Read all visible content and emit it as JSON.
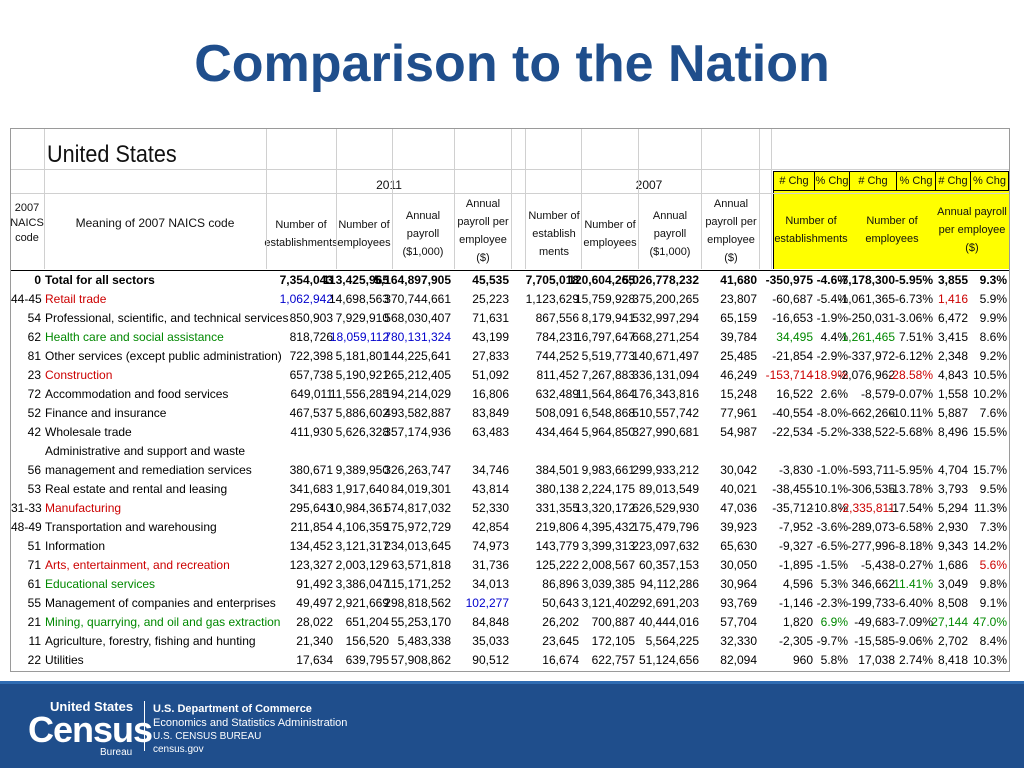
{
  "slide": {
    "title": "Comparison to the Nation"
  },
  "sheet": {
    "region": "United States",
    "col_code_header": "2007 NAICS code",
    "col_meaning_header": "Meaning of 2007 NAICS code",
    "year_a": "2011",
    "year_b": "2007",
    "sub_headers": [
      "Number of establishments",
      "Number of employees",
      "Annual payroll ($1,000)",
      "Annual payroll per employee ($)"
    ],
    "sub_headers_2007": [
      "Number of establish ments",
      "Number of employees",
      "Annual payroll ($1,000)",
      "Annual payroll per employee ($)"
    ],
    "chg_labels": [
      "# Chg",
      "% Chg",
      "# Chg",
      "% Chg",
      "# Chg",
      "% Chg"
    ],
    "chg_groups": [
      "Number of establishments",
      "Number of employees",
      "Annual payroll per employee ($)"
    ],
    "rows": [
      {
        "code": "0",
        "name": "Total for all sectors",
        "e11": "7,354,043",
        "p11": "113,425,965",
        "pay11": "5,164,897,905",
        "ppe11": "45,535",
        "e07": "7,705,018",
        "p07": "120,604,265",
        "pay07": "5,026,778,232",
        "ppe07": "41,680",
        "ec": "-350,975",
        "ep": "-4.6%",
        "pc": "-7,178,300",
        "pp": "-5.95%",
        "wc": "3,855",
        "wp": "9.3%",
        "bold": true
      },
      {
        "code": "44-45",
        "name": "Retail trade",
        "e11": "1,062,942",
        "p11": "14,698,563",
        "pay11": "370,744,661",
        "ppe11": "25,223",
        "e07": "1,123,629",
        "p07": "15,759,928",
        "pay07": "375,200,265",
        "ppe07": "23,807",
        "ec": "-60,687",
        "ep": "-5.4%",
        "pc": "-1,061,365",
        "pp": "-6.73%",
        "wc": "1,416",
        "wp": "5.9%",
        "namecolor": "#cc0000",
        "e11color": "#0000cc",
        "wccolor": "#cc0000"
      },
      {
        "code": "54",
        "name": "Professional, scientific, and technical services",
        "e11": "850,903",
        "p11": "7,929,910",
        "pay11": "568,030,407",
        "ppe11": "71,631",
        "e07": "867,556",
        "p07": "8,179,941",
        "pay07": "532,997,294",
        "ppe07": "65,159",
        "ec": "-16,653",
        "ep": "-1.9%",
        "pc": "-250,031",
        "pp": "-3.06%",
        "wc": "6,472",
        "wp": "9.9%"
      },
      {
        "code": "62",
        "name": "Health care and social assistance",
        "e11": "818,726",
        "p11": "18,059,112",
        "pay11": "780,131,324",
        "ppe11": "43,199",
        "e07": "784,231",
        "p07": "16,797,647",
        "pay07": "668,271,254",
        "ppe07": "39,784",
        "ec": "34,495",
        "ep": "4.4%",
        "pc": "1,261,465",
        "pp": "7.51%",
        "wc": "3,415",
        "wp": "8.6%",
        "namecolor": "#008800",
        "p11color": "#0000cc",
        "pay11color": "#0000cc",
        "eccolor": "#008800",
        "pccolor": "#008800"
      },
      {
        "code": "81",
        "name": "Other services (except public administration)",
        "e11": "722,398",
        "p11": "5,181,801",
        "pay11": "144,225,641",
        "ppe11": "27,833",
        "e07": "744,252",
        "p07": "5,519,773",
        "pay07": "140,671,497",
        "ppe07": "25,485",
        "ec": "-21,854",
        "ep": "-2.9%",
        "pc": "-337,972",
        "pp": "-6.12%",
        "wc": "2,348",
        "wp": "9.2%"
      },
      {
        "code": "23",
        "name": "Construction",
        "e11": "657,738",
        "p11": "5,190,921",
        "pay11": "265,212,405",
        "ppe11": "51,092",
        "e07": "811,452",
        "p07": "7,267,883",
        "pay07": "336,131,094",
        "ppe07": "46,249",
        "ec": "-153,714",
        "ep": "-18.9%",
        "pc": "-2,076,962",
        "pp": "-28.58%",
        "wc": "4,843",
        "wp": "10.5%",
        "namecolor": "#cc0000",
        "eccolor": "#cc0000",
        "epcolor": "#cc0000",
        "ppcolor": "#cc0000"
      },
      {
        "code": "72",
        "name": "Accommodation and food services",
        "e11": "649,011",
        "p11": "11,556,285",
        "pay11": "194,214,029",
        "ppe11": "16,806",
        "e07": "632,489",
        "p07": "11,564,864",
        "pay07": "176,343,816",
        "ppe07": "15,248",
        "ec": "16,522",
        "ep": "2.6%",
        "pc": "-8,579",
        "pp": "-0.07%",
        "wc": "1,558",
        "wp": "10.2%"
      },
      {
        "code": "52",
        "name": "Finance and insurance",
        "e11": "467,537",
        "p11": "5,886,602",
        "pay11": "493,582,887",
        "ppe11": "83,849",
        "e07": "508,091",
        "p07": "6,548,868",
        "pay07": "510,557,742",
        "ppe07": "77,961",
        "ec": "-40,554",
        "ep": "-8.0%",
        "pc": "-662,266",
        "pp": "-10.11%",
        "wc": "5,887",
        "wp": "7.6%"
      },
      {
        "code": "42",
        "name": "Wholesale trade",
        "e11": "411,930",
        "p11": "5,626,328",
        "pay11": "357,174,936",
        "ppe11": "63,483",
        "e07": "434,464",
        "p07": "5,964,850",
        "pay07": "327,990,681",
        "ppe07": "54,987",
        "ec": "-22,534",
        "ep": "-5.2%",
        "pc": "-338,522",
        "pp": "-5.68%",
        "wc": "8,496",
        "wp": "15.5%"
      },
      {
        "code": "",
        "name": "Administrative and support and waste",
        "e11": "",
        "p11": "",
        "pay11": "",
        "ppe11": "",
        "e07": "",
        "p07": "",
        "pay07": "",
        "ppe07": "",
        "ec": "",
        "ep": "",
        "pc": "",
        "pp": "",
        "wc": "",
        "wp": ""
      },
      {
        "code": "56",
        "name": "management and remediation services",
        "e11": "380,671",
        "p11": "9,389,950",
        "pay11": "326,263,747",
        "ppe11": "34,746",
        "e07": "384,501",
        "p07": "9,983,661",
        "pay07": "299,933,212",
        "ppe07": "30,042",
        "ec": "-3,830",
        "ep": "-1.0%",
        "pc": "-593,711",
        "pp": "-5.95%",
        "wc": "4,704",
        "wp": "15.7%"
      },
      {
        "code": "53",
        "name": "Real estate and rental and leasing",
        "e11": "341,683",
        "p11": "1,917,640",
        "pay11": "84,019,301",
        "ppe11": "43,814",
        "e07": "380,138",
        "p07": "2,224,175",
        "pay07": "89,013,549",
        "ppe07": "40,021",
        "ec": "-38,455",
        "ep": "-10.1%",
        "pc": "-306,535",
        "pp": "-13.78%",
        "wc": "3,793",
        "wp": "9.5%"
      },
      {
        "code": "31-33",
        "name": "Manufacturing",
        "e11": "295,643",
        "p11": "10,984,361",
        "pay11": "574,817,032",
        "ppe11": "52,330",
        "e07": "331,355",
        "p07": "13,320,172",
        "pay07": "626,529,930",
        "ppe07": "47,036",
        "ec": "-35,712",
        "ep": "-10.8%",
        "pc": "-2,335,811",
        "pp": "-17.54%",
        "wc": "5,294",
        "wp": "11.3%",
        "namecolor": "#cc0000",
        "pccolor": "#cc0000"
      },
      {
        "code": "48-49",
        "name": "Transportation and warehousing",
        "e11": "211,854",
        "p11": "4,106,359",
        "pay11": "175,972,729",
        "ppe11": "42,854",
        "e07": "219,806",
        "p07": "4,395,432",
        "pay07": "175,479,796",
        "ppe07": "39,923",
        "ec": "-7,952",
        "ep": "-3.6%",
        "pc": "-289,073",
        "pp": "-6.58%",
        "wc": "2,930",
        "wp": "7.3%"
      },
      {
        "code": "51",
        "name": "Information",
        "e11": "134,452",
        "p11": "3,121,317",
        "pay11": "234,013,645",
        "ppe11": "74,973",
        "e07": "143,779",
        "p07": "3,399,313",
        "pay07": "223,097,632",
        "ppe07": "65,630",
        "ec": "-9,327",
        "ep": "-6.5%",
        "pc": "-277,996",
        "pp": "-8.18%",
        "wc": "9,343",
        "wp": "14.2%"
      },
      {
        "code": "71",
        "name": "Arts, entertainment, and recreation",
        "e11": "123,327",
        "p11": "2,003,129",
        "pay11": "63,571,818",
        "ppe11": "31,736",
        "e07": "125,222",
        "p07": "2,008,567",
        "pay07": "60,357,153",
        "ppe07": "30,050",
        "ec": "-1,895",
        "ep": "-1.5%",
        "pc": "-5,438",
        "pp": "-0.27%",
        "wc": "1,686",
        "wp": "5.6%",
        "namecolor": "#cc0000",
        "wpcolor": "#cc0000"
      },
      {
        "code": "61",
        "name": "Educational services",
        "e11": "91,492",
        "p11": "3,386,047",
        "pay11": "115,171,252",
        "ppe11": "34,013",
        "e07": "86,896",
        "p07": "3,039,385",
        "pay07": "94,112,286",
        "ppe07": "30,964",
        "ec": "4,596",
        "ep": "5.3%",
        "pc": "346,662",
        "pp": "11.41%",
        "wc": "3,049",
        "wp": "9.8%",
        "namecolor": "#008800",
        "ppcolor": "#008800"
      },
      {
        "code": "55",
        "name": "Management of companies and enterprises",
        "e11": "49,497",
        "p11": "2,921,669",
        "pay11": "298,818,562",
        "ppe11": "102,277",
        "e07": "50,643",
        "p07": "3,121,402",
        "pay07": "292,691,203",
        "ppe07": "93,769",
        "ec": "-1,146",
        "ep": "-2.3%",
        "pc": "-199,733",
        "pp": "-6.40%",
        "wc": "8,508",
        "wp": "9.1%",
        "ppe11color": "#0000cc"
      },
      {
        "code": "21",
        "name": "Mining, quarrying, and oil and gas extraction",
        "e11": "28,022",
        "p11": "651,204",
        "pay11": "55,253,170",
        "ppe11": "84,848",
        "e07": "26,202",
        "p07": "700,887",
        "pay07": "40,444,016",
        "ppe07": "57,704",
        "ec": "1,820",
        "ep": "6.9%",
        "pc": "-49,683",
        "pp": "-7.09%",
        "wc": "27,144",
        "wp": "47.0%",
        "namecolor": "#008800",
        "epcolor": "#008800",
        "wccolor": "#008800",
        "wpcolor": "#008800"
      },
      {
        "code": "11",
        "name": "Agriculture, forestry, fishing and hunting",
        "e11": "21,340",
        "p11": "156,520",
        "pay11": "5,483,338",
        "ppe11": "35,033",
        "e07": "23,645",
        "p07": "172,105",
        "pay07": "5,564,225",
        "ppe07": "32,330",
        "ec": "-2,305",
        "ep": "-9.7%",
        "pc": "-15,585",
        "pp": "-9.06%",
        "wc": "2,702",
        "wp": "8.4%"
      },
      {
        "code": "22",
        "name": "Utilities",
        "e11": "17,634",
        "p11": "639,795",
        "pay11": "57,908,862",
        "ppe11": "90,512",
        "e07": "16,674",
        "p07": "622,757",
        "pay07": "51,124,656",
        "ppe07": "82,094",
        "ec": "960",
        "ep": "5.8%",
        "pc": "17,038",
        "pp": "2.74%",
        "wc": "8,418",
        "wp": "10.3%"
      }
    ]
  },
  "footer": {
    "logo_top": "United States",
    "logo_main": "Census",
    "logo_bureau": "Bureau",
    "line1": "U.S. Department of Commerce",
    "line2": "Economics and Statistics Administration",
    "line3": "U.S. CENSUS BUREAU",
    "line4": "census.gov"
  }
}
